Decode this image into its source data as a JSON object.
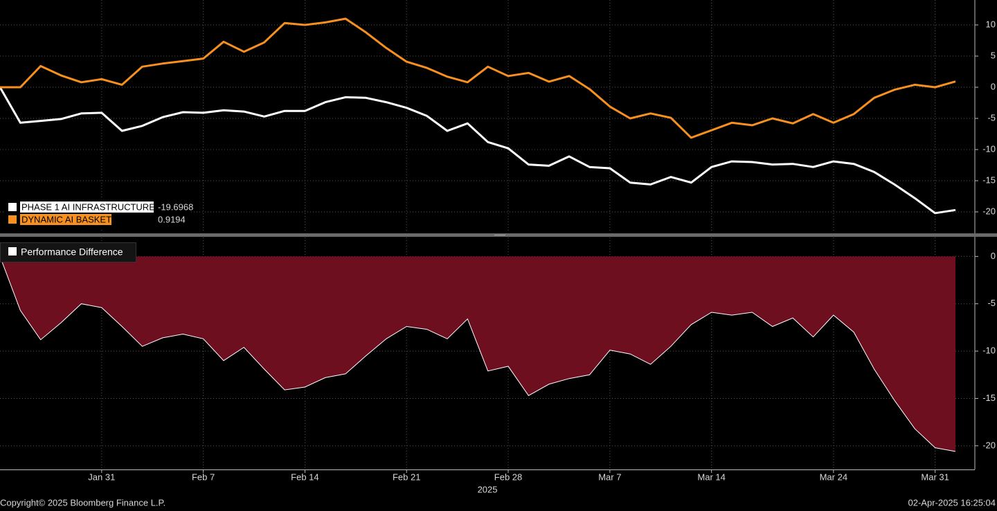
{
  "chart_data": [
    {
      "type": "line",
      "series": [
        {
          "name": "PHASE 1 AI INFRASTRUCTURE",
          "color": "#ffffff",
          "values": [
            0,
            -5.7,
            -5.4,
            -5.1,
            -4.2,
            -4.1,
            -7.0,
            -6.2,
            -4.8,
            -4.0,
            -4.1,
            -3.7,
            -3.9,
            -4.7,
            -3.8,
            -3.8,
            -2.4,
            -1.6,
            -1.7,
            -2.4,
            -3.3,
            -4.6,
            -7.0,
            -5.8,
            -8.8,
            -9.8,
            -12.4,
            -12.6,
            -11.1,
            -12.8,
            -13.0,
            -15.3,
            -15.6,
            -14.4,
            -15.3,
            -12.8,
            -11.9,
            -12.0,
            -12.4,
            -12.3,
            -12.8,
            -11.9,
            -12.3,
            -13.6,
            -15.6,
            -17.8,
            -20.2,
            -19.6968
          ]
        },
        {
          "name": "DYNAMIC AI BASKET",
          "color": "#f7901e",
          "values": [
            0,
            0,
            3.4,
            1.9,
            0.8,
            1.3,
            0.4,
            3.3,
            3.8,
            4.2,
            4.6,
            7.3,
            5.7,
            7.2,
            10.3,
            10.0,
            10.4,
            11.0,
            8.8,
            6.3,
            4.1,
            3.1,
            1.7,
            0.8,
            3.3,
            1.8,
            2.3,
            0.9,
            1.8,
            -0.3,
            -3.1,
            -5.0,
            -4.2,
            -4.9,
            -8.1,
            -6.9,
            -5.7,
            -6.1,
            -5.0,
            -5.8,
            -4.3,
            -5.7,
            -4.3,
            -1.7,
            -0.4,
            0.4,
            0,
            0.9194
          ]
        }
      ],
      "ylim": [
        -23,
        14
      ],
      "yticks": [
        10,
        5,
        0,
        -5,
        -10,
        -15,
        -20
      ],
      "grid": true
    },
    {
      "type": "area",
      "categories": [
        null,
        null,
        null,
        null,
        null,
        "Jan 31",
        null,
        null,
        null,
        null,
        "Feb 7",
        null,
        null,
        null,
        null,
        "Feb 14",
        null,
        null,
        null,
        null,
        "Feb 21",
        null,
        null,
        null,
        null,
        "Feb 28",
        null,
        null,
        null,
        null,
        "Mar 7",
        null,
        null,
        null,
        null,
        "Mar 14",
        null,
        null,
        null,
        null,
        null,
        "Mar 24",
        null,
        null,
        null,
        null,
        "Mar 31",
        null
      ],
      "x_label": "2025",
      "series": [
        {
          "name": "Performance Difference",
          "color": "#6e0f20",
          "values": [
            0,
            -5.7,
            -8.8,
            -7.0,
            -5.0,
            -5.4,
            -7.4,
            -9.5,
            -8.6,
            -8.2,
            -8.7,
            -11.0,
            -9.6,
            -11.9,
            -14.1,
            -13.8,
            -12.8,
            -12.4,
            -10.5,
            -8.7,
            -7.4,
            -7.7,
            -8.7,
            -6.6,
            -12.1,
            -11.6,
            -14.7,
            -13.5,
            -12.9,
            -12.5,
            -9.9,
            -10.3,
            -11.4,
            -9.5,
            -7.2,
            -5.9,
            -6.2,
            -5.9,
            -7.4,
            -6.5,
            -8.5,
            -6.2,
            -8.0,
            -11.9,
            -15.2,
            -18.2,
            -20.2,
            -20.6
          ]
        }
      ],
      "ylim": [
        -22.5,
        2
      ],
      "yticks": [
        0,
        -5,
        -10,
        -15,
        -20
      ],
      "grid": true
    }
  ],
  "footer": {
    "copyright": "Copyright© 2025 Bloomberg Finance L.P.",
    "timestamp": "02-Apr-2025 16:25:04"
  }
}
